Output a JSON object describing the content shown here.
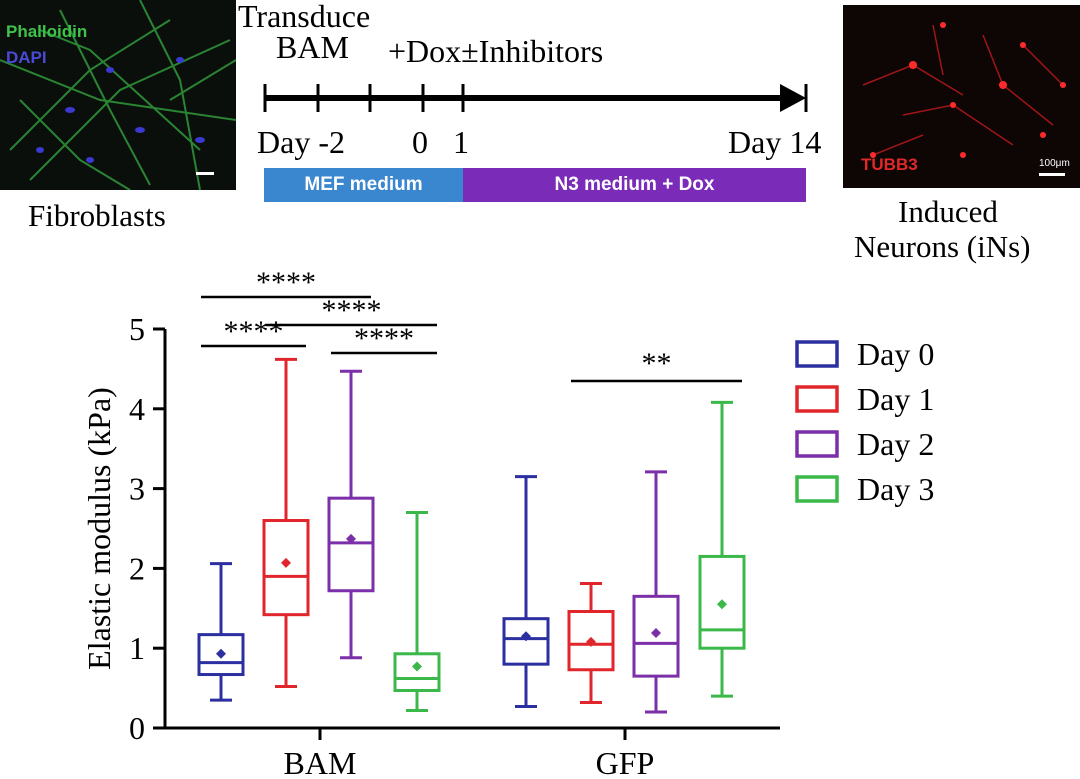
{
  "figure": {
    "left_image": {
      "stain_1": "Phalloidin",
      "stain_2": "DAPI",
      "caption": "Fibroblasts",
      "stain_1_color": "#3fc24a",
      "stain_2_color": "#4a4ad8"
    },
    "right_image": {
      "stain": "TUBB3",
      "scale_label": "100μm",
      "caption_line1": "Induced",
      "caption_line2": "Neurons (iNs)",
      "stain_color": "#e02828"
    },
    "timeline": {
      "step1_line1": "Transduce",
      "step1_line2": "BAM",
      "step2": "+Dox±Inhibitors",
      "tick_labels": [
        "Day -2",
        "0",
        "1",
        "Day 14"
      ],
      "medium_1": "MEF medium",
      "medium_2": "N3 medium + Dox",
      "medium_1_color": "#3a86cf",
      "medium_2_color": "#7a2bb8"
    }
  },
  "chart_data": {
    "type": "box",
    "ylabel": "Elastic modulus (kPa)",
    "ylim": [
      0,
      5
    ],
    "yticks": [
      "0",
      "1",
      "2",
      "3",
      "4",
      "5"
    ],
    "groups": [
      "BAM",
      "GFP"
    ],
    "series": [
      {
        "name": "Day 0",
        "color": "#2b2fa0"
      },
      {
        "name": "Day 1",
        "color": "#e0262b"
      },
      {
        "name": "Day 2",
        "color": "#7b2fa8"
      },
      {
        "name": "Day 3",
        "color": "#3bb84a"
      }
    ],
    "boxes": [
      {
        "group": "BAM",
        "series": "Day 0",
        "min": 0.35,
        "q1": 0.67,
        "median": 0.82,
        "q3": 1.17,
        "max": 2.06,
        "mean": 0.93
      },
      {
        "group": "BAM",
        "series": "Day 1",
        "min": 0.52,
        "q1": 1.42,
        "median": 1.9,
        "q3": 2.6,
        "max": 4.62,
        "mean": 2.07
      },
      {
        "group": "BAM",
        "series": "Day 2",
        "min": 0.88,
        "q1": 1.72,
        "median": 2.32,
        "q3": 2.88,
        "max": 4.47,
        "mean": 2.37
      },
      {
        "group": "BAM",
        "series": "Day 3",
        "min": 0.22,
        "q1": 0.47,
        "median": 0.62,
        "q3": 0.93,
        "max": 2.7,
        "mean": 0.77
      },
      {
        "group": "GFP",
        "series": "Day 0",
        "min": 0.27,
        "q1": 0.8,
        "median": 1.12,
        "q3": 1.37,
        "max": 3.15,
        "mean": 1.15
      },
      {
        "group": "GFP",
        "series": "Day 1",
        "min": 0.32,
        "q1": 0.73,
        "median": 1.05,
        "q3": 1.46,
        "max": 1.81,
        "mean": 1.08
      },
      {
        "group": "GFP",
        "series": "Day 2",
        "min": 0.2,
        "q1": 0.65,
        "median": 1.06,
        "q3": 1.65,
        "max": 3.21,
        "mean": 1.19
      },
      {
        "group": "GFP",
        "series": "Day 3",
        "min": 0.4,
        "q1": 1.0,
        "median": 1.23,
        "q3": 2.15,
        "max": 4.08,
        "mean": 1.55
      }
    ],
    "significance": [
      {
        "group": "BAM",
        "from": "Day 0",
        "to": "Day 2",
        "label": "****"
      },
      {
        "group": "BAM",
        "from": "Day 0",
        "to": "Day 1",
        "label": "****"
      },
      {
        "group": "BAM",
        "from": "Day 1",
        "to": "Day 3",
        "label": "****"
      },
      {
        "group": "BAM",
        "from": "Day 2",
        "to": "Day 3",
        "label": "****"
      },
      {
        "group": "GFP",
        "from": "Day 1",
        "to": "Day 3",
        "label": "**"
      }
    ]
  }
}
